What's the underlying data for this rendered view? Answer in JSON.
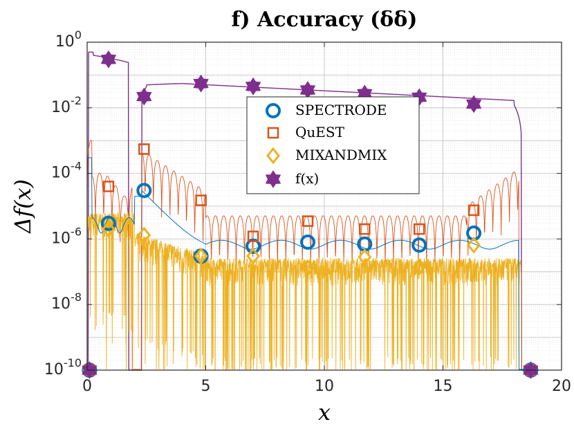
{
  "chart_data": {
    "type": "line",
    "title": "f) Accuracy (δδ)",
    "xlabel": "x",
    "ylabel": "Δf(x)",
    "xlim": [
      0,
      20
    ],
    "ylim": [
      1e-10,
      1
    ],
    "yscale": "log",
    "grid": true,
    "legend_position": "top-center",
    "x_ticks": [
      "0",
      "5",
      "10",
      "15",
      "20"
    ],
    "y_ticks": [
      {
        "base": "10",
        "exp": "0"
      },
      {
        "base": "10",
        "exp": "-2"
      },
      {
        "base": "10",
        "exp": "-4"
      },
      {
        "base": "10",
        "exp": "-6"
      },
      {
        "base": "10",
        "exp": "-8"
      },
      {
        "base": "10",
        "exp": "-10"
      }
    ],
    "colors": {
      "SPECTRODE": "#0072BD",
      "QuEST": "#D95319",
      "MIXANDMIX": "#EDB120",
      "fx": "#7E2F8E"
    },
    "series": [
      {
        "name": "SPECTRODE",
        "marker": "circle",
        "x": [
          0.1,
          0.9,
          2.4,
          4.8,
          7.0,
          9.3,
          11.7,
          14.0,
          16.3,
          18.7
        ],
        "y": [
          1e-10,
          3e-06,
          3e-05,
          3e-07,
          6e-07,
          8e-07,
          7e-07,
          6.5e-07,
          1.5e-06,
          1e-10
        ]
      },
      {
        "name": "QuEST",
        "marker": "square",
        "x": [
          0.1,
          0.9,
          2.4,
          4.8,
          7.0,
          9.3,
          11.7,
          14.0,
          16.3,
          18.7
        ],
        "y": [
          1e-10,
          4e-05,
          0.00055,
          1.5e-05,
          1.2e-06,
          3.5e-06,
          2e-06,
          2e-06,
          7.5e-06,
          1e-10
        ]
      },
      {
        "name": "MIXANDMIX",
        "marker": "diamond",
        "x": [
          0.1,
          0.9,
          2.4,
          4.8,
          7.0,
          9.3,
          11.7,
          14.0,
          16.3,
          18.7
        ],
        "y": [
          1e-10,
          2e-06,
          1.3e-06,
          3e-07,
          3e-07,
          1.3e-07,
          2.8e-07,
          1.4e-07,
          6.5e-07,
          1e-10
        ]
      },
      {
        "name": "f(x)",
        "marker": "star",
        "x": [
          0.1,
          0.9,
          2.4,
          4.8,
          7.0,
          9.3,
          11.7,
          14.0,
          16.3,
          18.7
        ],
        "y": [
          1e-10,
          0.3,
          0.022,
          0.055,
          0.045,
          0.035,
          0.027,
          0.021,
          0.013,
          1e-10
        ]
      }
    ]
  }
}
